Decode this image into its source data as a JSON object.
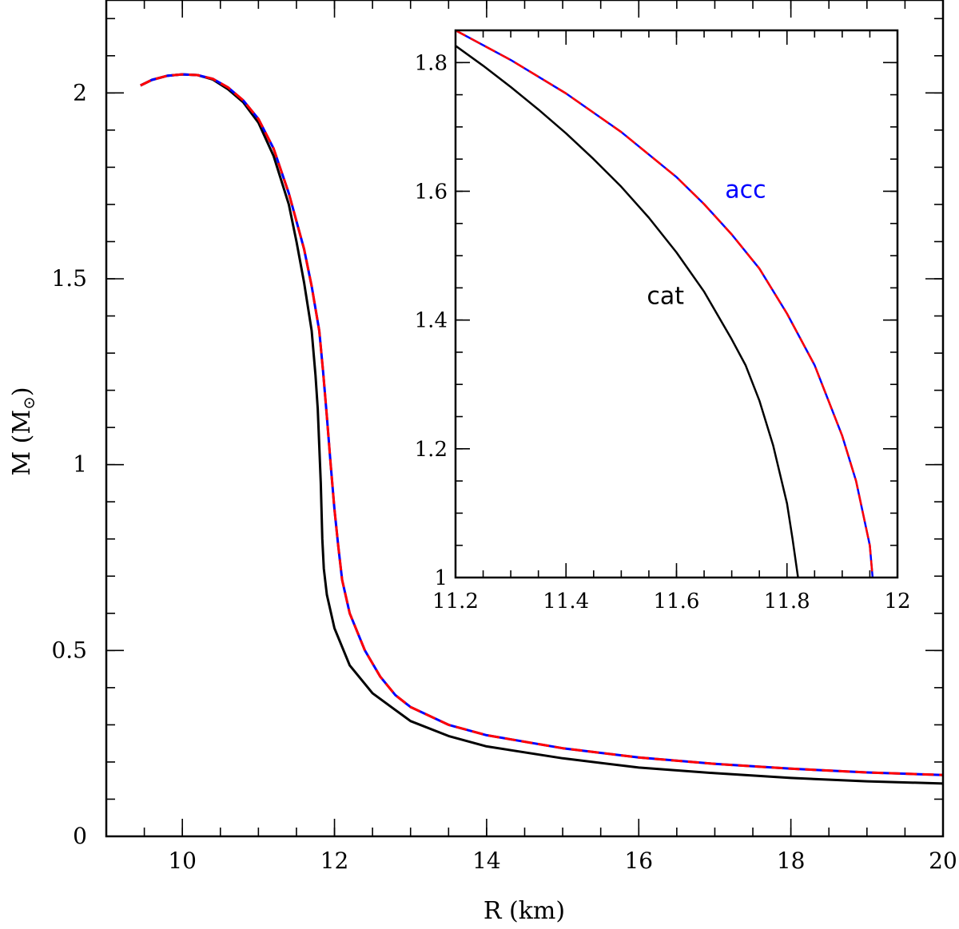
{
  "chart_data": [
    {
      "type": "line",
      "xlabel": "R (km)",
      "ylabel_main": "M",
      "ylabel_unit": "M",
      "ylabel_unit_symbol": "⊙",
      "xlim": [
        9,
        20
      ],
      "ylim": [
        0,
        2.25
      ],
      "x_ticks_major": [
        10,
        12,
        14,
        16,
        18,
        20
      ],
      "x_ticks_minor_step": 0.5,
      "y_ticks_major": [
        0,
        0.5,
        1,
        1.5,
        2
      ],
      "y_ticks_minor_step": 0.1,
      "series": [
        {
          "color": "#000000",
          "style": "solid",
          "points": [
            [
              9.45,
              2.02
            ],
            [
              9.6,
              2.035
            ],
            [
              9.8,
              2.046
            ],
            [
              10.0,
              2.05
            ],
            [
              10.2,
              2.048
            ],
            [
              10.4,
              2.036
            ],
            [
              10.6,
              2.01
            ],
            [
              10.8,
              1.975
            ],
            [
              11.0,
              1.92
            ],
            [
              11.2,
              1.83
            ],
            [
              11.4,
              1.7
            ],
            [
              11.5,
              1.6
            ],
            [
              11.6,
              1.49
            ],
            [
              11.7,
              1.36
            ],
            [
              11.75,
              1.24
            ],
            [
              11.78,
              1.15
            ],
            [
              11.8,
              1.05
            ],
            [
              11.82,
              0.95
            ],
            [
              11.84,
              0.8
            ],
            [
              11.86,
              0.72
            ],
            [
              11.9,
              0.65
            ],
            [
              12.0,
              0.56
            ],
            [
              12.2,
              0.46
            ],
            [
              12.5,
              0.385
            ],
            [
              12.8,
              0.34
            ],
            [
              13.0,
              0.31
            ],
            [
              13.5,
              0.27
            ],
            [
              14,
              0.242
            ],
            [
              15,
              0.21
            ],
            [
              16,
              0.185
            ],
            [
              17,
              0.17
            ],
            [
              18,
              0.157
            ],
            [
              19,
              0.148
            ],
            [
              20,
              0.142
            ]
          ]
        },
        {
          "color": "#0000ff",
          "style": "solid",
          "points": [
            [
              9.45,
              2.02
            ],
            [
              9.6,
              2.035
            ],
            [
              9.8,
              2.046
            ],
            [
              10.0,
              2.05
            ],
            [
              10.2,
              2.048
            ],
            [
              10.4,
              2.038
            ],
            [
              10.6,
              2.015
            ],
            [
              10.8,
              1.98
            ],
            [
              11.0,
              1.93
            ],
            [
              11.2,
              1.85
            ],
            [
              11.4,
              1.73
            ],
            [
              11.6,
              1.58
            ],
            [
              11.7,
              1.48
            ],
            [
              11.8,
              1.36
            ],
            [
              11.85,
              1.25
            ],
            [
              11.9,
              1.13
            ],
            [
              11.95,
              1.0
            ],
            [
              12.0,
              0.88
            ],
            [
              12.05,
              0.78
            ],
            [
              12.1,
              0.69
            ],
            [
              12.2,
              0.6
            ],
            [
              12.4,
              0.5
            ],
            [
              12.6,
              0.43
            ],
            [
              12.8,
              0.38
            ],
            [
              13.0,
              0.348
            ],
            [
              13.5,
              0.3
            ],
            [
              14,
              0.272
            ],
            [
              15,
              0.237
            ],
            [
              16,
              0.212
            ],
            [
              17,
              0.195
            ],
            [
              18,
              0.182
            ],
            [
              19,
              0.172
            ],
            [
              20,
              0.165
            ]
          ]
        },
        {
          "color": "#ff0000",
          "style": "dashed",
          "points": [
            [
              9.45,
              2.02
            ],
            [
              9.6,
              2.035
            ],
            [
              9.8,
              2.046
            ],
            [
              10.0,
              2.05
            ],
            [
              10.2,
              2.048
            ],
            [
              10.4,
              2.038
            ],
            [
              10.6,
              2.015
            ],
            [
              10.8,
              1.98
            ],
            [
              11.0,
              1.93
            ],
            [
              11.2,
              1.85
            ],
            [
              11.4,
              1.73
            ],
            [
              11.6,
              1.58
            ],
            [
              11.7,
              1.48
            ],
            [
              11.8,
              1.36
            ],
            [
              11.85,
              1.25
            ],
            [
              11.9,
              1.13
            ],
            [
              11.95,
              1.0
            ],
            [
              12.0,
              0.88
            ],
            [
              12.05,
              0.78
            ],
            [
              12.1,
              0.69
            ],
            [
              12.2,
              0.6
            ],
            [
              12.4,
              0.5
            ],
            [
              12.6,
              0.43
            ],
            [
              12.8,
              0.38
            ],
            [
              13.0,
              0.348
            ],
            [
              13.5,
              0.3
            ],
            [
              14,
              0.272
            ],
            [
              15,
              0.237
            ],
            [
              16,
              0.212
            ],
            [
              17,
              0.195
            ],
            [
              18,
              0.182
            ],
            [
              19,
              0.172
            ],
            [
              20,
              0.165
            ]
          ]
        }
      ]
    },
    {
      "type": "line",
      "role": "inset",
      "xlim": [
        11.2,
        12
      ],
      "ylim": [
        1,
        1.85
      ],
      "x_ticks_major": [
        11.2,
        11.4,
        11.6,
        11.8,
        12
      ],
      "x_tick_labels": [
        "11.2",
        "11.4",
        "11.6",
        "11.8",
        "12"
      ],
      "x_ticks_minor_step": 0.05,
      "y_ticks_major": [
        1,
        1.2,
        1.4,
        1.6,
        1.8
      ],
      "y_tick_labels": [
        "1",
        "1.2",
        "1.4",
        "1.6",
        "1.8"
      ],
      "y_ticks_minor_step": 0.05,
      "annotations": [
        {
          "text": "acc",
          "color": "#0000ff",
          "x": 11.725,
          "y": 1.59
        },
        {
          "text": "cat",
          "color": "#000000",
          "x": 11.58,
          "y": 1.425
        }
      ],
      "series": [
        {
          "color": "#000000",
          "style": "solid",
          "points": [
            [
              11.2,
              1.826
            ],
            [
              11.25,
              1.795
            ],
            [
              11.3,
              1.762
            ],
            [
              11.35,
              1.727
            ],
            [
              11.4,
              1.69
            ],
            [
              11.45,
              1.65
            ],
            [
              11.5,
              1.607
            ],
            [
              11.55,
              1.559
            ],
            [
              11.6,
              1.505
            ],
            [
              11.65,
              1.444
            ],
            [
              11.7,
              1.37
            ],
            [
              11.725,
              1.33
            ],
            [
              11.75,
              1.275
            ],
            [
              11.775,
              1.205
            ],
            [
              11.8,
              1.115
            ],
            [
              11.81,
              1.06
            ],
            [
              11.82,
              1.0
            ]
          ]
        },
        {
          "color": "#0000ff",
          "style": "solid",
          "points": [
            [
              11.2,
              1.85
            ],
            [
              11.3,
              1.804
            ],
            [
              11.4,
              1.752
            ],
            [
              11.5,
              1.692
            ],
            [
              11.6,
              1.622
            ],
            [
              11.65,
              1.58
            ],
            [
              11.7,
              1.533
            ],
            [
              11.75,
              1.48
            ],
            [
              11.8,
              1.41
            ],
            [
              11.85,
              1.33
            ],
            [
              11.9,
              1.22
            ],
            [
              11.925,
              1.15
            ],
            [
              11.95,
              1.05
            ],
            [
              11.955,
              1.0
            ]
          ]
        },
        {
          "color": "#ff0000",
          "style": "dashed",
          "points": [
            [
              11.2,
              1.85
            ],
            [
              11.3,
              1.804
            ],
            [
              11.4,
              1.752
            ],
            [
              11.5,
              1.692
            ],
            [
              11.6,
              1.622
            ],
            [
              11.65,
              1.58
            ],
            [
              11.7,
              1.533
            ],
            [
              11.75,
              1.48
            ],
            [
              11.8,
              1.41
            ],
            [
              11.85,
              1.33
            ],
            [
              11.9,
              1.22
            ],
            [
              11.925,
              1.15
            ],
            [
              11.95,
              1.05
            ],
            [
              11.955,
              1.0
            ]
          ]
        }
      ]
    }
  ]
}
